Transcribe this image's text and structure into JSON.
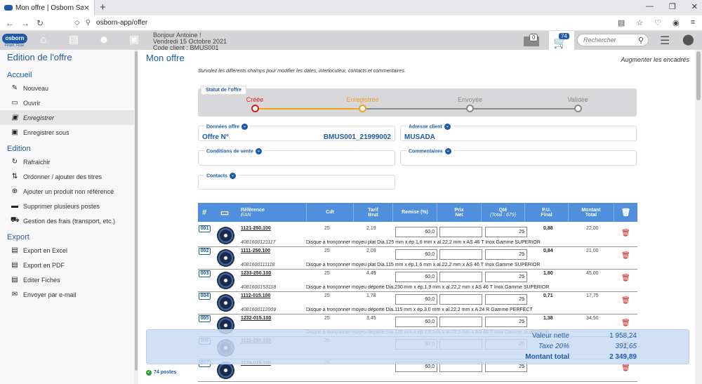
{
  "browser": {
    "tab_title": "Mon offre | Osborn Sales Tool",
    "url": "osborn-app/offer"
  },
  "header": {
    "logo": "osborn",
    "logo_sub": "Finish. Flow.",
    "greeting": "Bonjour Antoine !",
    "date": "Vendredi 15 Octobre 2021",
    "client_code": "Code client : BMUS001",
    "basket_count": "0",
    "cart_count": "74",
    "search_placeholder": "Rechercher"
  },
  "sidebar": {
    "title": "Edition de l'offre",
    "sections": [
      {
        "label": "Accueil",
        "items": [
          {
            "label": "Nouveau",
            "icon": "pencil-icon",
            "glyph": "✎"
          },
          {
            "label": "Ouvrir",
            "icon": "folder-open-icon",
            "glyph": "▭"
          },
          {
            "label": "Enregistrer",
            "icon": "save-icon",
            "glyph": "▣",
            "active": true
          },
          {
            "label": "Enregistrer sous",
            "icon": "save-as-icon",
            "glyph": "▣"
          }
        ]
      },
      {
        "label": "Edition",
        "items": [
          {
            "label": "Rafraichir",
            "icon": "refresh-icon",
            "glyph": "↻"
          },
          {
            "label": "Ordonner / ajouter des titres",
            "icon": "sort-icon",
            "glyph": "⇅"
          },
          {
            "label": "Ajouter un produit non référencé",
            "icon": "cart-add-icon",
            "glyph": "⊕"
          },
          {
            "label": "Supprimer plusieurs postes",
            "icon": "trash-icon",
            "glyph": "▬"
          },
          {
            "label": "Gestion des frais (transport, etc.)",
            "icon": "truck-icon",
            "glyph": "⛟"
          }
        ]
      },
      {
        "label": "Export",
        "items": [
          {
            "label": "Export en Excel",
            "icon": "excel-icon",
            "glyph": "▤"
          },
          {
            "label": "Export en PDF",
            "icon": "pdf-icon",
            "glyph": "▤"
          },
          {
            "label": "Editer Fiches",
            "icon": "document-icon",
            "glyph": "▤"
          },
          {
            "label": "Envoyer par e-mail",
            "icon": "mail-icon",
            "glyph": "✉"
          }
        ]
      }
    ]
  },
  "main": {
    "title": "Mon offre",
    "expand_link": "Augmenter les encadrés",
    "intro": "Survolez les différents champs pour modifier les dates, interlocuteur, contacts et commentaires.",
    "status": {
      "label": "Statut de l'offre",
      "steps": [
        "Créée",
        "Enregistrée",
        "Envoyée",
        "Validée"
      ],
      "current_index": 1,
      "colors": [
        "#d81e1e",
        "#f0a020",
        "#888888",
        "#888888"
      ]
    },
    "fields": {
      "donnees": {
        "label": "Données offre",
        "key": "Offre N°",
        "value": "BMUS001_21999002"
      },
      "adresse": {
        "label": "Adresse client",
        "value": "MUSADA"
      },
      "conditions": {
        "label": "Conditions de vente"
      },
      "commentaires": {
        "label": "Commentaires"
      },
      "contacts": {
        "label": "Contacts"
      }
    },
    "table": {
      "headers": {
        "hash": "#",
        "ref": "Référence",
        "ean": "EAN",
        "cdt": "Cdt",
        "tarif": "Tarif",
        "brut": "Brut",
        "remise": "Remise (%)",
        "prix": "Prix",
        "net": "Net",
        "qte": "Qté",
        "total": "(Total : 679)",
        "pu": "P.U.",
        "final": "Final",
        "montant": "Montant",
        "montant_total": "Total"
      },
      "rows": [
        {
          "num": "001",
          "ref": "1121-250.100",
          "ean": "4081600121117",
          "cdt": "25",
          "tarif": "2,19",
          "remise": "60,0",
          "prix": "",
          "qte": "25",
          "pu": "0,88",
          "montant": "22,00",
          "desc": "Disque à tronçonner moyeu plat Dia.125 mm x ép.1,6 mm x al.22,2 mm x AS 46 T Inox Gamme SUPERIOR"
        },
        {
          "num": "002",
          "ref": "1111-250.100",
          "ean": "4081600111118",
          "cdt": "25",
          "tarif": "2,09",
          "remise": "60,0",
          "prix": "",
          "qte": "25",
          "pu": "0,84",
          "montant": "21,00",
          "desc": "Disque à tronçonner moyeu plat Dia.115 mm x ép.1,6 mm x al.22,2 mm x AS 46 T Inox Gamme SUPERIOR"
        },
        {
          "num": "003",
          "ref": "1233-250.100",
          "ean": "4081600153118",
          "cdt": "25",
          "tarif": "4,49",
          "remise": "60,0",
          "prix": "",
          "qte": "25",
          "pu": "1,80",
          "montant": "45,00",
          "desc": "Disque à tronçonner moyeu déporté Dia.230 mm x ép.1,9 mm x al.22,2 mm x AS 46 T Inox Gamme SUPERIOR"
        },
        {
          "num": "004",
          "ref": "1112-015.100",
          "ean": "4081600112009",
          "cdt": "25",
          "tarif": "1,78",
          "remise": "60,0",
          "prix": "",
          "qte": "25",
          "pu": "0,71",
          "montant": "17,75",
          "desc": "Disque à tronçonner moyeu déporté Dia.115 mm x ép.3,0 mm x al.22,2 mm x A 24 R Gamme PERFECT"
        },
        {
          "num": "005",
          "ref": "1232-015.100",
          "ean": "",
          "cdt": "25",
          "tarif": "3,45",
          "remise": "60,0",
          "prix": "",
          "qte": "25",
          "pu": "1,38",
          "montant": "34,50",
          "desc": "Disque à tronçonner moyeu déporté Dia.125 mm x ép.1,6 mm x al.22,2 mm x AS 46 T Inox Gamme SUPERIOR"
        },
        {
          "num": "006",
          "ref": "1122-250.100",
          "ean": "",
          "cdt": "25",
          "tarif": "",
          "remise": "60,0",
          "prix": "",
          "qte": "25",
          "pu": "",
          "montant": "",
          "desc": ""
        },
        {
          "num": "007",
          "ref": "1124-015.100",
          "ean": "",
          "cdt": "25",
          "tarif": "",
          "remise": "60,0",
          "prix": "",
          "qte": "25",
          "pu": "",
          "montant": "",
          "desc": ""
        }
      ]
    },
    "totals": {
      "net_label": "Valeur nette",
      "net_value": "1 958,24",
      "tax_label": "Taxe 20%",
      "tax_value": "391,65",
      "total_label": "Montant total",
      "total_value": "2 349,89"
    },
    "footer": "74 postes"
  }
}
